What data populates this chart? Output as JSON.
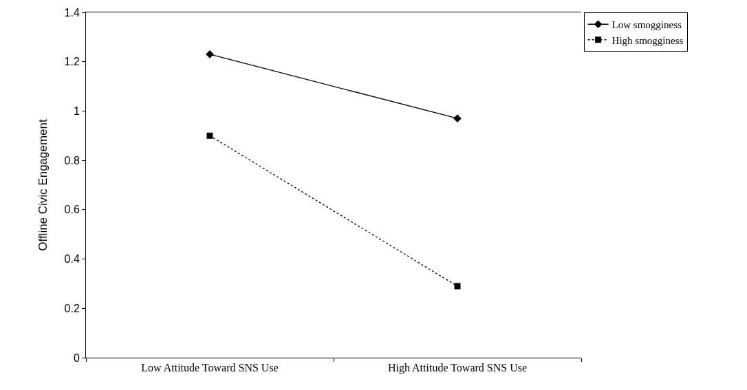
{
  "chart_data": {
    "type": "line",
    "ylabel": "Offline Civic Engagement",
    "categories": [
      "Low Attitude Toward SNS Use",
      "High Attitude Toward SNS Use"
    ],
    "series": [
      {
        "name": "Low smogginess",
        "color": "#000000",
        "values": [
          1.23,
          0.97
        ],
        "marker": "diamond",
        "line_style": "solid"
      },
      {
        "name": "High smogginess",
        "color": "#000000",
        "values": [
          0.9,
          0.29
        ],
        "marker": "square",
        "line_style": "dotted"
      }
    ],
    "ylim": [
      0,
      1.4
    ],
    "yticks": [
      0,
      0.2,
      0.4,
      0.6,
      0.8,
      1,
      1.2,
      1.4
    ],
    "grid": false,
    "legend": "top right"
  }
}
